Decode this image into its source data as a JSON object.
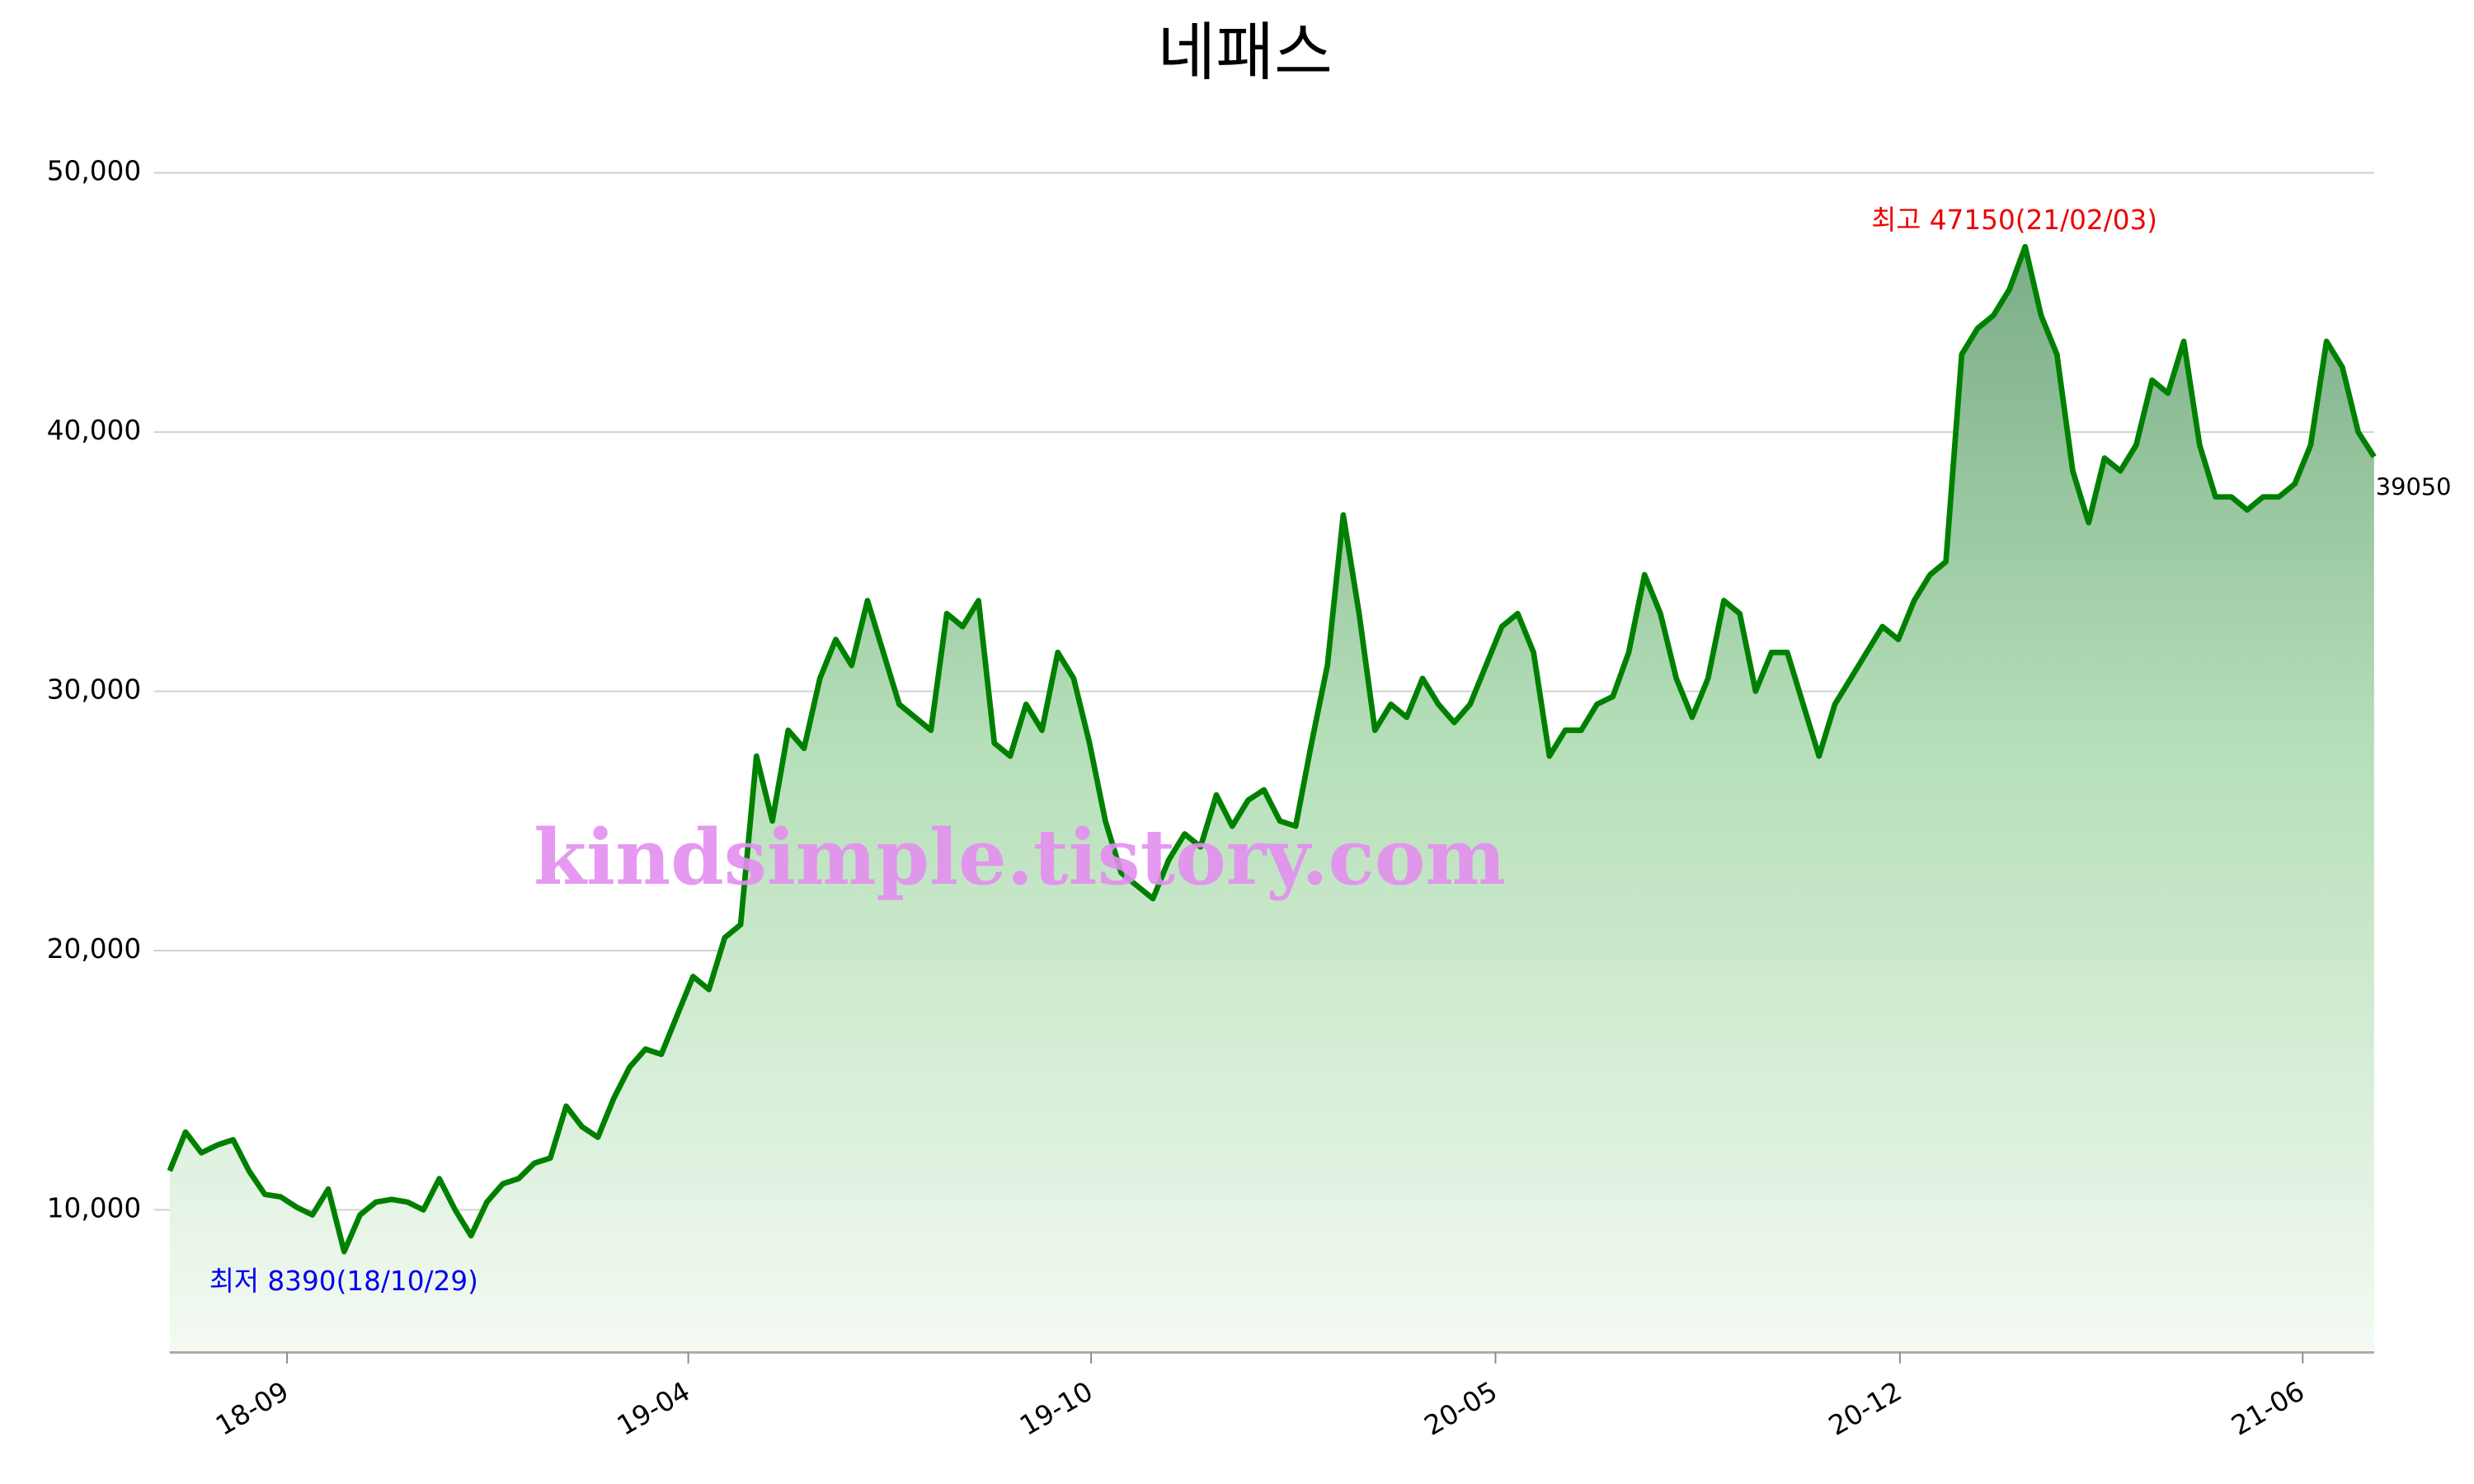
{
  "chart_data": {
    "type": "area-line",
    "title": "네패스",
    "series": [
      {
        "name": "네패스",
        "color": "#008000",
        "values": [
          11500,
          13000,
          12200,
          12500,
          12700,
          11500,
          10600,
          10500,
          10100,
          9800,
          10800,
          8390,
          9800,
          10300,
          10400,
          10300,
          10000,
          11200,
          10000,
          9000,
          10300,
          11000,
          11200,
          11800,
          12000,
          14000,
          13200,
          12800,
          14300,
          15500,
          16200,
          16000,
          17500,
          19000,
          18500,
          20500,
          21000,
          27500,
          25000,
          28500,
          27800,
          30500,
          32000,
          31000,
          33500,
          31500,
          29500,
          29000,
          28500,
          33000,
          32500,
          33500,
          28000,
          27500,
          29500,
          28500,
          31500,
          30500,
          28000,
          25000,
          23000,
          22500,
          22000,
          23500,
          24500,
          24000,
          26000,
          24800,
          25800,
          26200,
          25000,
          24800,
          28000,
          31000,
          36800,
          33000,
          28500,
          29500,
          29000,
          30500,
          29500,
          28800,
          29500,
          31000,
          32500,
          33000,
          31500,
          27500,
          28500,
          28500,
          29500,
          29800,
          31500,
          34500,
          33000,
          30500,
          29000,
          30500,
          33500,
          33000,
          30000,
          31500,
          31500,
          29500,
          27500,
          29500,
          30500,
          31500,
          32500,
          32000,
          33500,
          34500,
          35000,
          43000,
          44000,
          44500,
          45500,
          47150,
          44500,
          43000,
          38500,
          36500,
          39000,
          38500,
          39500,
          42000,
          41500,
          43500,
          39500,
          37500,
          37500,
          37000,
          37500,
          37500,
          38000,
          39500,
          43500,
          42500,
          40000,
          39050
        ]
      }
    ],
    "xlim": [
      0,
      139
    ],
    "xticks": [
      {
        "value": 7.4,
        "label": "18-09"
      },
      {
        "value": 32.7,
        "label": "19-04"
      },
      {
        "value": 58.1,
        "label": "19-10"
      },
      {
        "value": 83.6,
        "label": "20-05"
      },
      {
        "value": 109.1,
        "label": "20-12"
      },
      {
        "value": 134.5,
        "label": "21-06"
      }
    ],
    "ylim": [
      4500,
      50000
    ],
    "yticks": [
      {
        "value": 10000,
        "label": "10,000"
      },
      {
        "value": 20000,
        "label": "20,000"
      },
      {
        "value": 30000,
        "label": "30,000"
      },
      {
        "value": 40000,
        "label": "40,000"
      },
      {
        "value": 50000,
        "label": "50,000"
      }
    ],
    "grid": true,
    "annotations": {
      "low": "최저 8390(18/10/29)",
      "high": "최고 47150(21/02/03)",
      "low_color": "#0000ee",
      "high_color": "#ee0000"
    },
    "watermark": "kindsimple.tistory.com"
  }
}
